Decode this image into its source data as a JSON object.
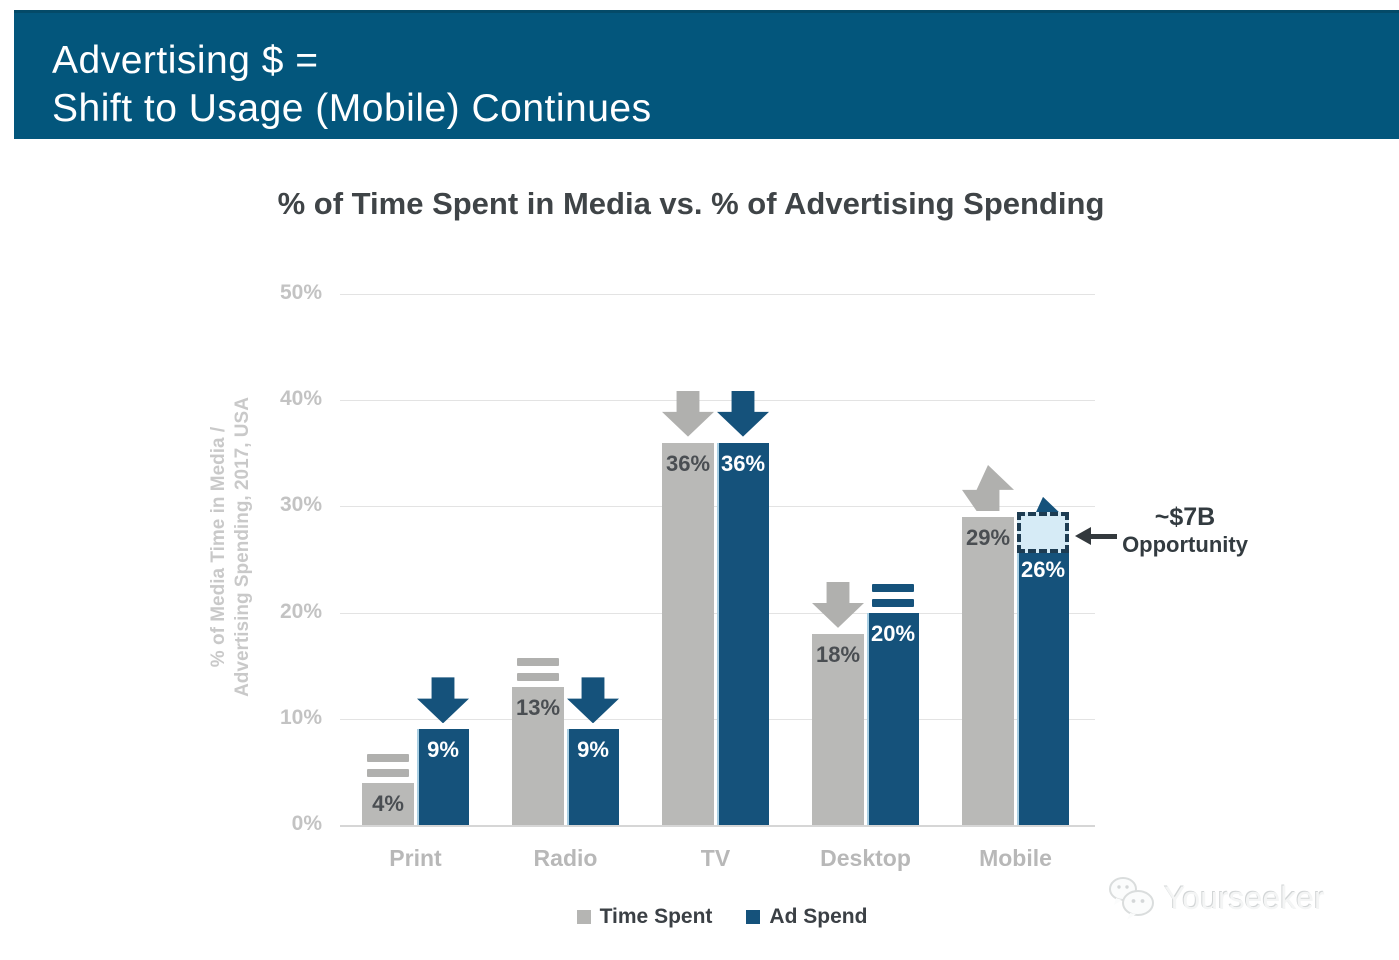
{
  "header": {
    "line1": "Advertising $ =",
    "line2": "Shift to Usage (Mobile) Continues",
    "bg_color": "#03567c",
    "text_color": "#ffffff"
  },
  "chart_data": {
    "type": "bar",
    "title": "% of Time Spent in Media vs. % of Advertising Spending",
    "categories": [
      "Print",
      "Radio",
      "TV",
      "Desktop",
      "Mobile"
    ],
    "series": [
      {
        "name": "Time Spent",
        "color": "#b9b9b7",
        "arrow_color": "#b0b0ae",
        "values": [
          4,
          13,
          36,
          18,
          29
        ],
        "data_labels": [
          "4%",
          "13%",
          "36%",
          "18%",
          "29%"
        ],
        "trend_arrows": [
          "equal",
          "equal",
          "down",
          "down",
          "up"
        ]
      },
      {
        "name": "Ad Spend",
        "color": "#15527b",
        "arrow_color": "#15527b",
        "values": [
          9,
          9,
          36,
          20,
          26
        ],
        "data_labels": [
          "9%",
          "9%",
          "36%",
          "20%",
          "26%"
        ],
        "trend_arrows": [
          "down",
          "down",
          "down",
          "equal",
          "up"
        ]
      }
    ],
    "ylabel_line1": "% of Media Time in Media /",
    "ylabel_line2": "Advertising Spending, 2017, USA",
    "yticks": [
      0,
      10,
      20,
      30,
      40,
      50
    ],
    "ytick_labels": [
      "0%",
      "10%",
      "20%",
      "30%",
      "40%",
      "50%"
    ],
    "ylim": [
      0,
      50
    ],
    "grid": true,
    "legend_position": "bottom",
    "annotation": {
      "label_line1": "~$7B",
      "label_line2": "Opportunity",
      "category": "Mobile",
      "series": "Ad Spend",
      "box_from_value": 26,
      "box_to_value": 29.5,
      "box_fill": "#d6ebf6",
      "box_border": "#1d3c52",
      "arrow_color": "#33393d"
    }
  },
  "legend": {
    "items": [
      {
        "label": "Time Spent",
        "color": "#b5b5b3"
      },
      {
        "label": "Ad Spend",
        "color": "#15527b"
      }
    ]
  },
  "watermark": {
    "text": "Yourseeker",
    "icon": "chat-bubbles-icon"
  }
}
